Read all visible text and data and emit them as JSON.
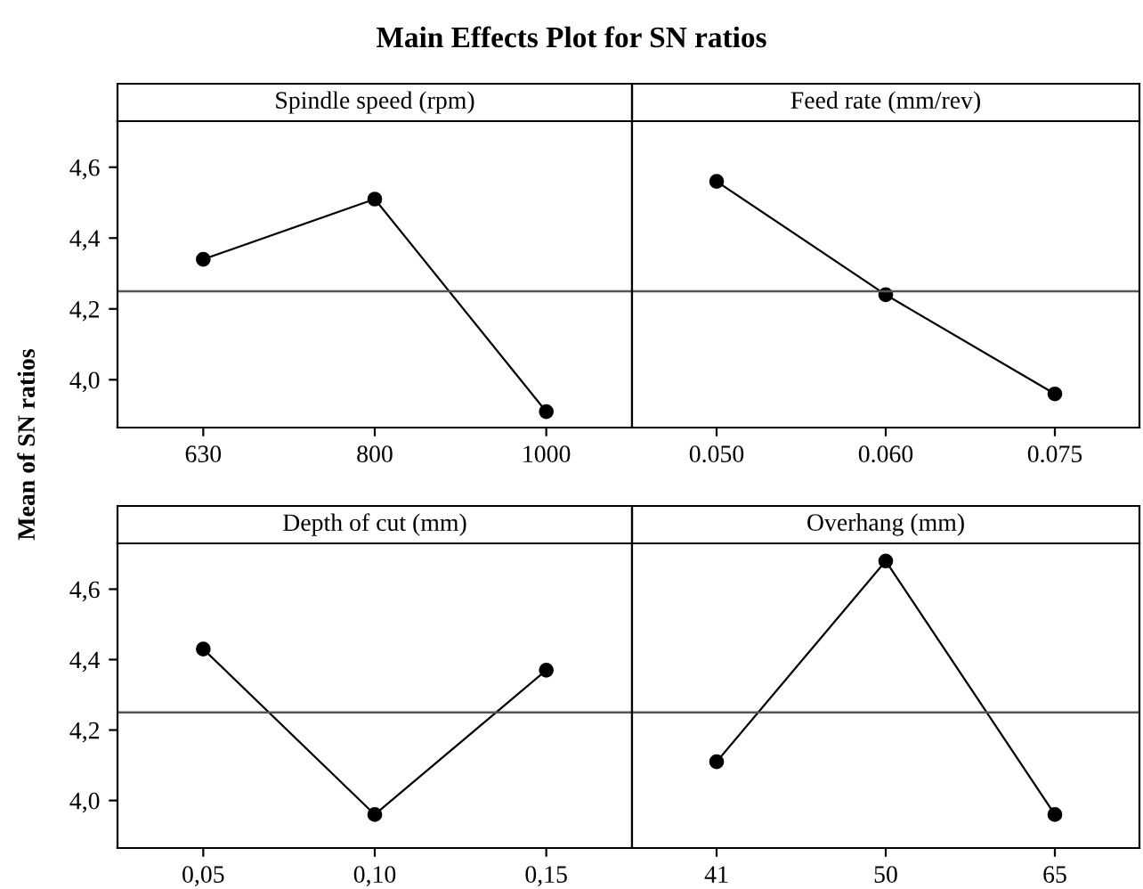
{
  "chart_data": [
    {
      "type": "line",
      "title": "Main Effects Plot for SN ratios",
      "ylabel": "Mean of SN ratios",
      "subtitle": "Spindle speed (rpm)",
      "categories": [
        "630",
        "800",
        "1000"
      ],
      "values": [
        4.34,
        4.51,
        3.91
      ],
      "color": "#000000",
      "marker": "circle",
      "ylim": [
        3.865,
        4.73
      ],
      "yticks": [
        {
          "value": 4.0,
          "label": "4,0"
        },
        {
          "value": 4.2,
          "label": "4,2"
        },
        {
          "value": 4.4,
          "label": "4,4"
        },
        {
          "value": 4.6,
          "label": "4,6"
        }
      ],
      "ref_lines": [
        {
          "axis": "y",
          "value": 4.25
        }
      ],
      "grid": false
    },
    {
      "type": "line",
      "subtitle": "Feed rate (mm/rev)",
      "categories": [
        "0.050",
        "0.060",
        "0.075"
      ],
      "values": [
        4.56,
        4.24,
        3.96
      ],
      "color": "#000000",
      "marker": "circle",
      "ylim": [
        3.865,
        4.73
      ],
      "tick_labels": "x",
      "ref_lines": [
        {
          "axis": "y",
          "value": 4.25
        }
      ],
      "grid": false
    },
    {
      "type": "line",
      "subtitle": "Depth of cut (mm)",
      "categories": [
        "0,05",
        "0,10",
        "0,15"
      ],
      "values": [
        4.43,
        3.96,
        4.37
      ],
      "color": "#000000",
      "marker": "circle",
      "ylim": [
        3.865,
        4.73
      ],
      "yticks": [
        {
          "value": 4.0,
          "label": "4,0"
        },
        {
          "value": 4.2,
          "label": "4,2"
        },
        {
          "value": 4.4,
          "label": "4,4"
        },
        {
          "value": 4.6,
          "label": "4,6"
        }
      ],
      "ref_lines": [
        {
          "axis": "y",
          "value": 4.25
        }
      ],
      "grid": false
    },
    {
      "type": "line",
      "subtitle": "Overhang (mm)",
      "categories": [
        "41",
        "50",
        "65"
      ],
      "values": [
        4.11,
        4.68,
        3.96
      ],
      "color": "#000000",
      "marker": "circle",
      "ylim": [
        3.865,
        4.73
      ],
      "tick_labels": "x",
      "ref_lines": [
        {
          "axis": "y",
          "value": 4.25
        }
      ],
      "grid": false
    }
  ]
}
